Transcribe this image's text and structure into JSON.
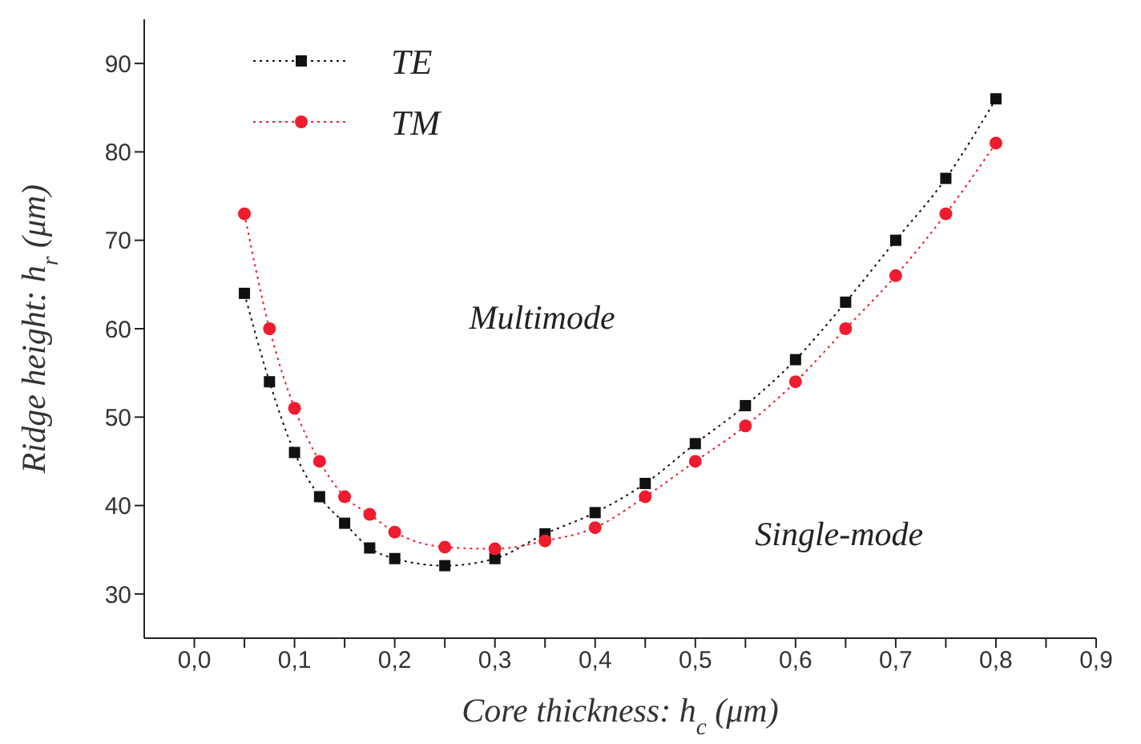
{
  "chart_data": {
    "type": "line",
    "xlabel": "Core thickness: h$_{c}$ (μm)",
    "ylabel": "Ridge height: h$_{r}$ (μm)",
    "x": [
      0.05,
      0.075,
      0.1,
      0.125,
      0.15,
      0.175,
      0.2,
      0.25,
      0.3,
      0.35,
      0.4,
      0.45,
      0.5,
      0.55,
      0.6,
      0.65,
      0.7,
      0.75,
      0.8
    ],
    "series": [
      {
        "name": "TE",
        "color": "#111111",
        "marker": "square",
        "values": [
          64,
          54,
          46,
          41,
          38,
          35.2,
          34,
          33.2,
          34,
          36.8,
          39.2,
          42.5,
          47,
          51.3,
          56.5,
          63,
          70,
          77,
          86
        ]
      },
      {
        "name": "TM",
        "color": "#ee1c2e",
        "marker": "circle",
        "values": [
          73,
          60,
          51,
          45,
          41,
          39,
          37,
          35.3,
          35.1,
          36,
          37.5,
          41,
          45,
          49,
          54,
          60,
          66,
          73,
          81
        ]
      }
    ],
    "line_style": "dotted",
    "legend": "top left",
    "grid": false,
    "xlim": [
      -0.05,
      0.9
    ],
    "xticks": [
      {
        "value": 0,
        "label": "0,0"
      },
      {
        "value": 0.05,
        "label": null
      },
      {
        "value": 0.1,
        "label": "0,1"
      },
      {
        "value": 0.15,
        "label": null
      },
      {
        "value": 0.2,
        "label": "0,2"
      },
      {
        "value": 0.25,
        "label": null
      },
      {
        "value": 0.3,
        "label": "0,3"
      },
      {
        "value": 0.35,
        "label": null
      },
      {
        "value": 0.4,
        "label": "0,4"
      },
      {
        "value": 0.45,
        "label": null
      },
      {
        "value": 0.5,
        "label": "0,5"
      },
      {
        "value": 0.55,
        "label": null
      },
      {
        "value": 0.6,
        "label": "0,6"
      },
      {
        "value": 0.65,
        "label": null
      },
      {
        "value": 0.7,
        "label": "0,7"
      },
      {
        "value": 0.75,
        "label": null
      },
      {
        "value": 0.8,
        "label": "0,8"
      },
      {
        "value": 0.85,
        "label": null
      },
      {
        "value": 0.9,
        "label": "0,9"
      }
    ],
    "ylim": [
      25,
      95
    ],
    "yticks": [
      30,
      40,
      50,
      60,
      70,
      80,
      90
    ],
    "annotations": [
      "Multimode",
      "Single-mode"
    ]
  }
}
